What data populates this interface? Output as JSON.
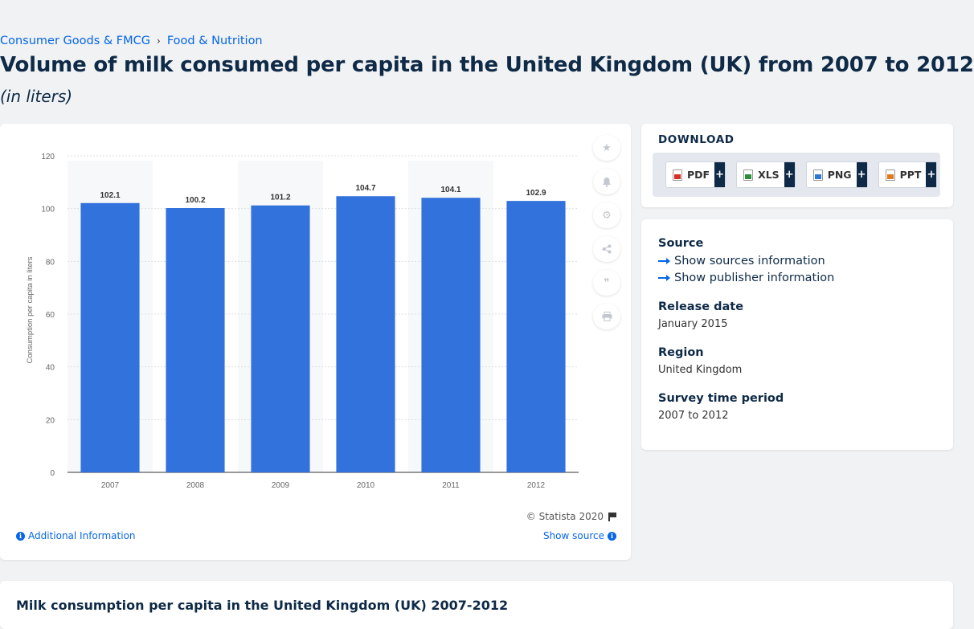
{
  "breadcrumb": {
    "items": [
      "Consumer Goods & FMCG",
      "Food & Nutrition"
    ],
    "separator": "›"
  },
  "page": {
    "title": "Volume of milk consumed per capita in the United Kingdom (UK) from 2007 to 2012",
    "subtitle": "(in liters)"
  },
  "chart_data": {
    "type": "bar",
    "categories": [
      "2007",
      "2008",
      "2009",
      "2010",
      "2011",
      "2012"
    ],
    "values": [
      102.1,
      100.2,
      101.2,
      104.7,
      104.1,
      102.9
    ],
    "data_labels": [
      "102.1",
      "100.2",
      "101.2",
      "104.7",
      "104.1",
      "102.9"
    ],
    "ylabel": "Consumption per capita in liters",
    "xlabel": "",
    "ylim": [
      0,
      120
    ],
    "yticks": [
      "0",
      "20",
      "40",
      "60",
      "80",
      "100",
      "120"
    ],
    "grid": true,
    "bar_color": "#3172dc"
  },
  "chart_footer": {
    "copyright": "© Statista 2020",
    "additional_info": "Additional Information",
    "show_source": "Show source"
  },
  "side_tools": [
    "star-icon",
    "bell-icon",
    "gear-icon",
    "share-icon",
    "quote-icon",
    "print-icon"
  ],
  "download": {
    "title": "DOWNLOAD",
    "buttons": [
      {
        "label": "PDF",
        "icon": "pdf-file-icon"
      },
      {
        "label": "XLS",
        "icon": "xls-file-icon"
      },
      {
        "label": "PNG",
        "icon": "png-file-icon"
      },
      {
        "label": "PPT",
        "icon": "ppt-file-icon"
      }
    ],
    "plus": "+"
  },
  "meta": {
    "source_label": "Source",
    "sources_link": "Show sources information",
    "publisher_link": "Show publisher information",
    "release_label": "Release date",
    "release_value": "January 2015",
    "region_label": "Region",
    "region_value": "United Kingdom",
    "survey_label": "Survey time period",
    "survey_value": "2007 to 2012"
  },
  "bottom": {
    "title": "Milk consumption per capita in the United Kingdom (UK) 2007-2012"
  },
  "colors": {
    "accent": "#0666e5",
    "navy": "#0e2a47",
    "bar": "#3172dc"
  }
}
